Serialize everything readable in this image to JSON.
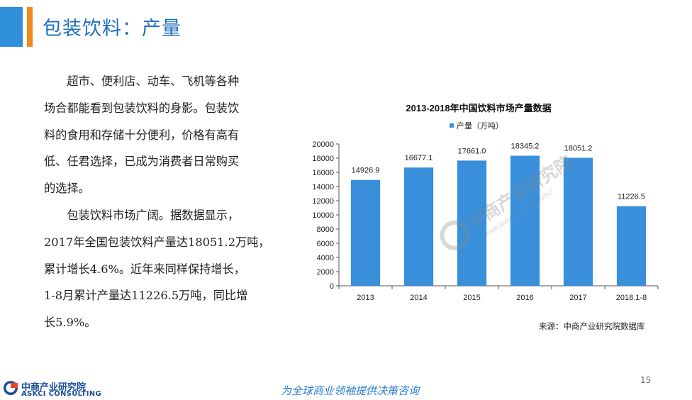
{
  "header": {
    "title": "包装饮料：产量"
  },
  "body": {
    "lines": [
      "　　超市、便利店、动车、飞机等各种",
      "场合都能看到包装饮料的身影。包装饮",
      "料的食用和存储十分便利，价格有高有",
      "低、任君选择，已成为消费者日常购买",
      "的选择。",
      "　　包装饮料市场广阔。据数据显示，",
      "2017年全国包装饮料产量达18051.2万吨，",
      "累计增长4.6%。近年来同样保持增长，",
      "1-8月累计产量达11226.5万吨，同比增",
      "长5.9%。"
    ]
  },
  "chart_data": {
    "type": "bar",
    "title": "2013-2018年中国饮料市场产量数据",
    "categories": [
      "2013",
      "2014",
      "2015",
      "2016",
      "2017",
      "2018.1-8"
    ],
    "series": [
      {
        "name": "产量（万吨）",
        "values": [
          14926.9,
          16677.1,
          17661.0,
          18345.2,
          18051.2,
          11226.5
        ]
      }
    ],
    "data_labels": [
      "14926.9",
      "16677.1",
      "17661.0",
      "18345.2",
      "18051.2",
      "11226.5"
    ],
    "ylim": [
      0,
      20000
    ],
    "yticks": [
      0,
      2000,
      4000,
      6000,
      8000,
      10000,
      12000,
      14000,
      16000,
      18000,
      20000
    ],
    "legend_position": "top",
    "bar_color": "#3a8fdb",
    "grid": false
  },
  "watermark": {
    "cn": "中商产业研究院",
    "url": "www.askci.com/reports/"
  },
  "source": "来源：中商产业研究院数据库",
  "page_number": "15",
  "footer": {
    "slogan": "为全球商业领袖提供决策咨询",
    "logo_cn": "中商产业研究院",
    "logo_en": "ASKCI CONSULTING"
  },
  "colors": {
    "accent_blue": "#2f8fd8",
    "accent_orange": "#f08a18",
    "title_blue": "#1f6fbf"
  }
}
